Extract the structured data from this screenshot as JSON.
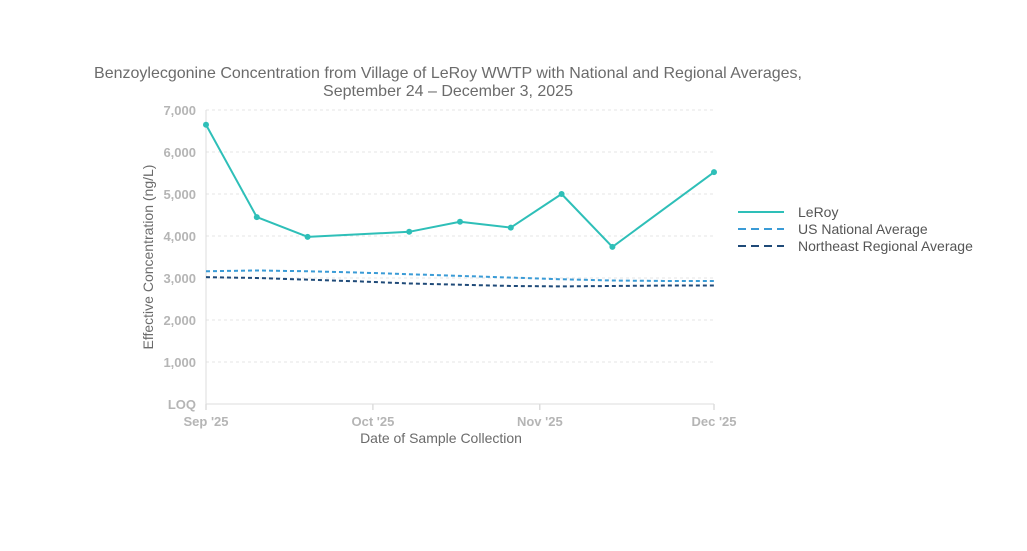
{
  "chart_data": {
    "type": "line",
    "title_line1": "Benzoylecgonine Concentration from Village of LeRoy WWTP with National and Regional Averages,",
    "title_line2": "September 24 – December 3, 2025",
    "xlabel": "Date of Sample Collection",
    "ylabel": "Effective Concentration (ng/L)",
    "ylim": [
      0,
      7000
    ],
    "xlim_days": [
      0,
      70
    ],
    "y_ticks": [
      {
        "value": 0,
        "label": "LOQ"
      },
      {
        "value": 1000,
        "label": "1,000"
      },
      {
        "value": 2000,
        "label": "2,000"
      },
      {
        "value": 3000,
        "label": "3,000"
      },
      {
        "value": 4000,
        "label": "4,000"
      },
      {
        "value": 5000,
        "label": "5,000"
      },
      {
        "value": 6000,
        "label": "6,000"
      },
      {
        "value": 7000,
        "label": "7,000"
      }
    ],
    "x_ticks": [
      {
        "day": 0,
        "label": "Sep '25"
      },
      {
        "day": 23,
        "label": "Oct '25"
      },
      {
        "day": 46,
        "label": "Nov '25"
      },
      {
        "day": 70,
        "label": "Dec '25"
      }
    ],
    "grid": true,
    "legend_position": "right",
    "series": [
      {
        "name": "LeRoy",
        "style": "solid-markers",
        "color": "#2ebfb8",
        "x_days": [
          0,
          7,
          14,
          28,
          35,
          42,
          49,
          56,
          70
        ],
        "values": [
          6650,
          4450,
          3980,
          4100,
          4340,
          4200,
          5000,
          3740,
          5520
        ]
      },
      {
        "name": "US National Average",
        "style": "dashed",
        "color": "#3a9bd6",
        "x_days": [
          0,
          7,
          14,
          21,
          28,
          35,
          42,
          49,
          56,
          63,
          70
        ],
        "values": [
          3160,
          3180,
          3160,
          3130,
          3090,
          3050,
          3010,
          2970,
          2940,
          2930,
          2930
        ]
      },
      {
        "name": "Northeast Regional Average",
        "style": "dashed",
        "color": "#1f4a78",
        "x_days": [
          0,
          7,
          14,
          21,
          28,
          35,
          42,
          49,
          56,
          63,
          70
        ],
        "values": [
          3020,
          3000,
          2960,
          2920,
          2870,
          2840,
          2810,
          2800,
          2810,
          2820,
          2820
        ]
      }
    ]
  }
}
